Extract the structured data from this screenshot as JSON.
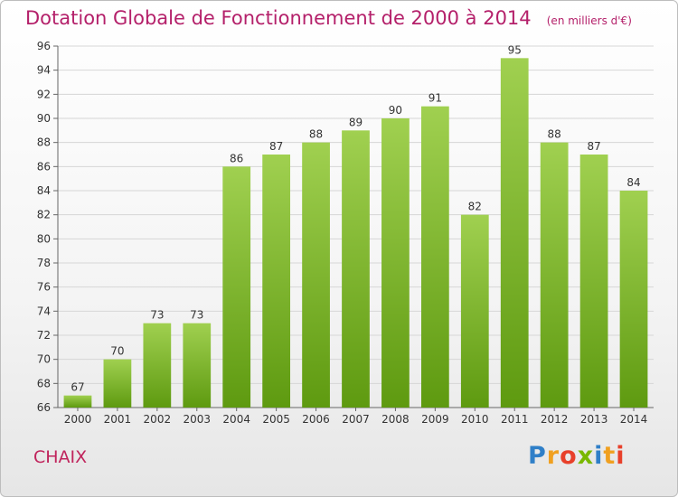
{
  "chart_data": {
    "type": "bar",
    "title": "Dotation Globale de Fonctionnement de 2000 à 2014",
    "subtitle": "(en milliers d'€)",
    "categories": [
      "2000",
      "2001",
      "2002",
      "2003",
      "2004",
      "2005",
      "2006",
      "2007",
      "2008",
      "2009",
      "2010",
      "2011",
      "2012",
      "2013",
      "2014"
    ],
    "values": [
      67,
      70,
      73,
      73,
      86,
      87,
      88,
      89,
      90,
      91,
      82,
      95,
      88,
      87,
      84
    ],
    "ylim": [
      66,
      96
    ],
    "yticks": [
      66,
      68,
      70,
      72,
      74,
      76,
      78,
      80,
      82,
      84,
      86,
      88,
      90,
      92,
      94,
      96
    ],
    "grid": true,
    "colors": {
      "bar_top": "#a0d050",
      "bar_bottom": "#5e9a10",
      "title": "#b4206a"
    }
  },
  "footer": {
    "commune": "CHAIX",
    "brand": "Proxiti"
  }
}
